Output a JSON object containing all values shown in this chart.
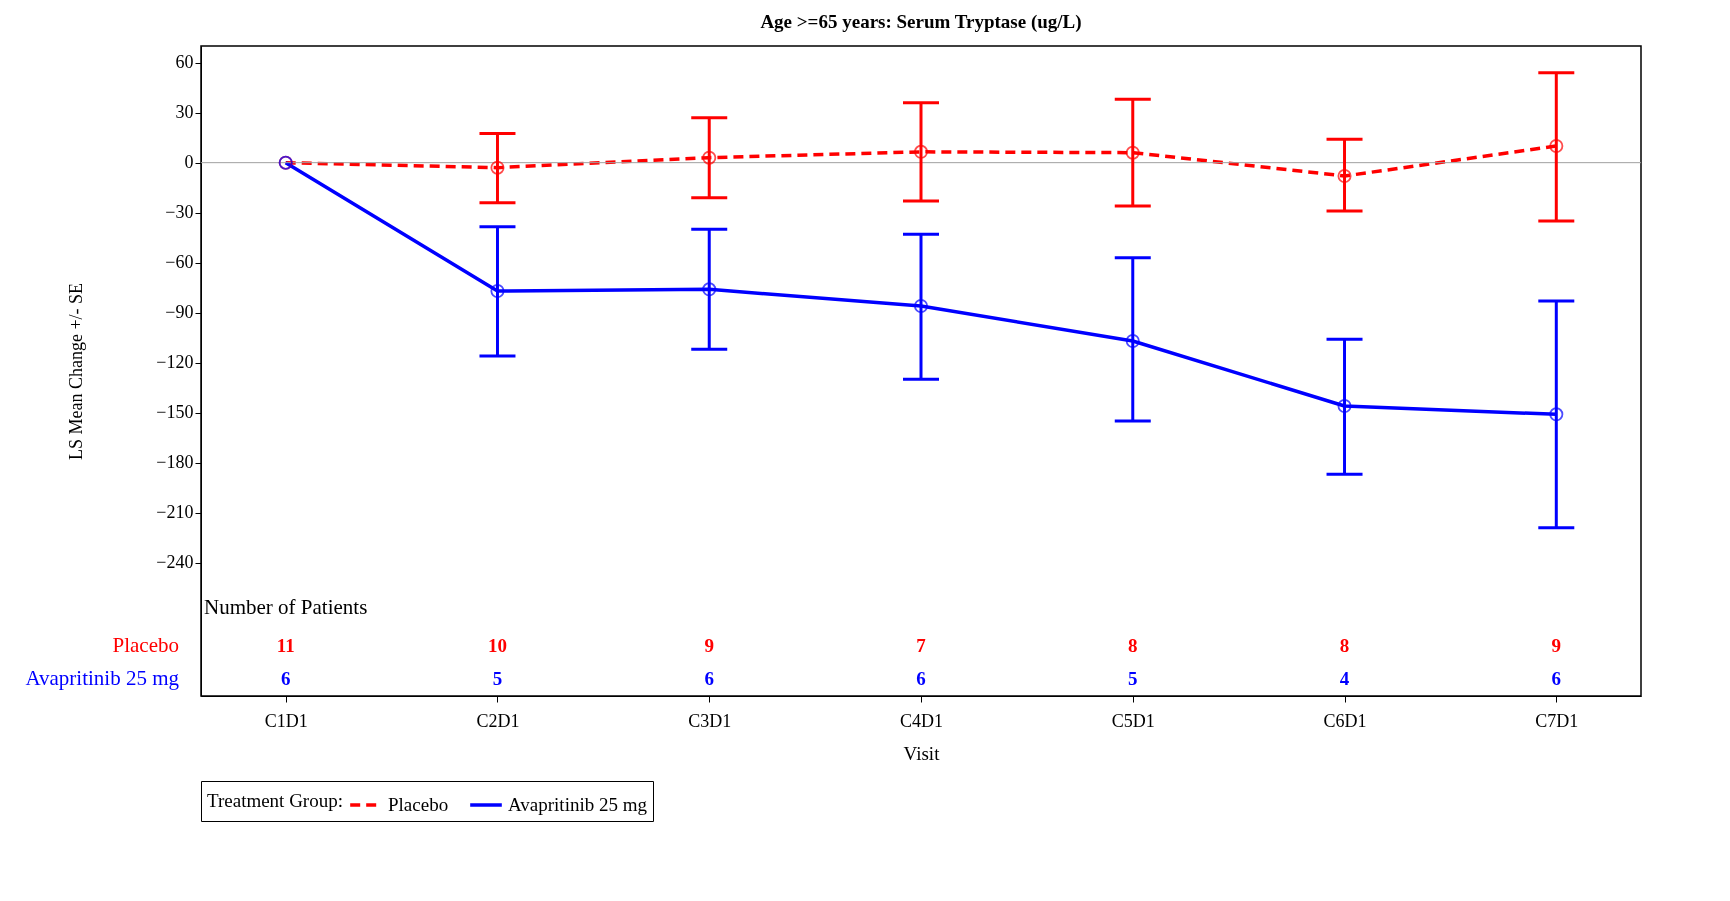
{
  "chart_data": {
    "type": "line",
    "title": "Age >=65 years: Serum Tryptase (ug/L)",
    "xlabel": "Visit",
    "ylabel": "LS Mean Change +/- SE",
    "legend_title": "Treatment Group:",
    "categories": [
      "C1D1",
      "C2D1",
      "C3D1",
      "C4D1",
      "C5D1",
      "C6D1",
      "C7D1"
    ],
    "series": [
      {
        "name": "Placebo",
        "color": "#ff0000",
        "line_style": "dashed",
        "values": [
          0,
          -3,
          3,
          6.5,
          6,
          -8,
          10
        ],
        "errors": [
          null,
          [
            -24,
            17.5
          ],
          [
            -21,
            27
          ],
          [
            -23,
            36
          ],
          [
            -26,
            38
          ],
          [
            -29,
            14
          ],
          [
            -35,
            54
          ]
        ]
      },
      {
        "name": "Avapritinib 25 mg",
        "color": "#0000ff",
        "line_style": "solid",
        "values": [
          0,
          -77,
          -76,
          -86,
          -107,
          -146,
          -151
        ],
        "errors": [
          null,
          [
            -116,
            -38.5
          ],
          [
            -112,
            -40
          ],
          [
            -130,
            -43
          ],
          [
            -155,
            -57
          ],
          [
            -187,
            -106
          ],
          [
            -219,
            -83
          ]
        ]
      }
    ],
    "ylim": [
      -320,
      70
    ],
    "yticks": [
      60,
      30,
      0,
      -30,
      -60,
      -90,
      -120,
      -150,
      -180,
      -210,
      -240
    ],
    "ref_lines": [
      {
        "axis": "y",
        "value": 0,
        "color": "#a0a0a0"
      }
    ],
    "marker": "circle",
    "grid": false,
    "legend": "bottom",
    "annotations": [
      "Number of Patients",
      "11",
      "10",
      "9",
      "7",
      "8",
      "8",
      "9",
      "6",
      "5",
      "6",
      "6",
      "5",
      "4",
      "6"
    ]
  }
}
